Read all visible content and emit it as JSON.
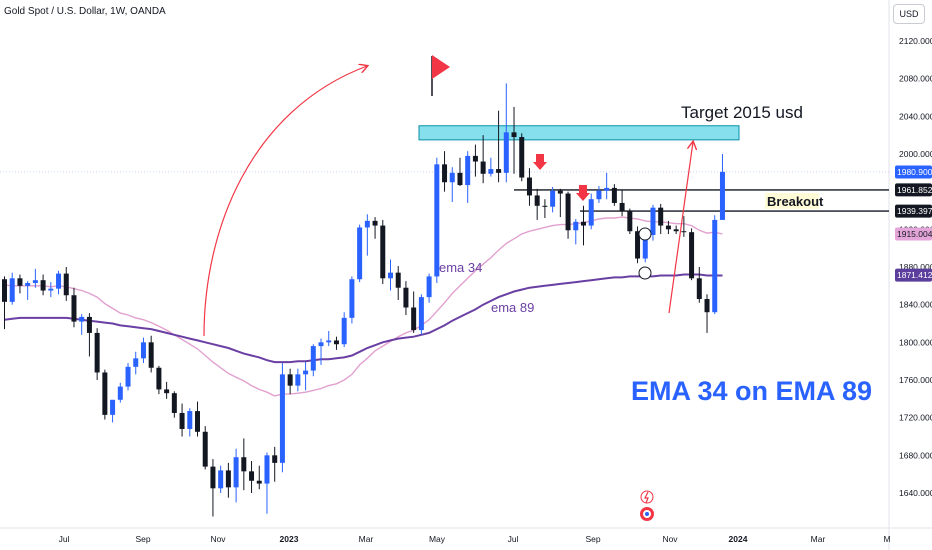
{
  "header": {
    "title": "Gold Spot / U.S. Dollar, 1W, OANDA",
    "currency": "USD"
  },
  "chart_data": {
    "type": "candlestick",
    "y_axis": {
      "ticks": [
        "2120.000",
        "2080.000",
        "2040.000",
        "2000.000",
        "1960.000",
        "1920.000",
        "1880.000",
        "1840.000",
        "1800.000",
        "1760.000",
        "1720.000",
        "1680.000",
        "1640.000"
      ],
      "range": [
        1612,
        2152
      ]
    },
    "x_axis": {
      "ticks": [
        "Jul",
        "Sep",
        "Nov",
        "2023",
        "Mar",
        "May",
        "Jul",
        "Sep",
        "Nov",
        "2024",
        "Mar",
        "M"
      ]
    },
    "price_labels": [
      {
        "value": "1980.900",
        "color": "#2962ff"
      },
      {
        "value": "1961.852",
        "color": "#131722"
      },
      {
        "value": "1939.397",
        "color": "#131722"
      },
      {
        "value": "1915.004",
        "color": "#e4a6d9"
      },
      {
        "value": "1871.412",
        "color": "#5b3d9c"
      }
    ],
    "horizontal_lines": [
      1961.852,
      1939.397
    ],
    "target_zone": [
      2015,
      2030
    ],
    "annotations": {
      "target": "Target 2015 usd",
      "breakout": "Breakout",
      "ema34": "ema 34",
      "ema89": "ema 89",
      "headline": "EMA 34 on EMA 89"
    },
    "series": [
      {
        "name": "ema 34",
        "color": "#e2a0cf"
      },
      {
        "name": "ema 89",
        "color": "#6a3fa3"
      }
    ],
    "colors": {
      "up": "#2962ff",
      "down": "#131722",
      "arrow": "#f23645",
      "zone": "#5cd4e6",
      "headline": "#2962ff"
    },
    "candles": [
      [
        1867,
        1870,
        1814,
        1843
      ],
      [
        1843,
        1874,
        1840,
        1868
      ],
      [
        1868,
        1872,
        1852,
        1860
      ],
      [
        1860,
        1865,
        1845,
        1863
      ],
      [
        1863,
        1878,
        1858,
        1866
      ],
      [
        1866,
        1872,
        1850,
        1855
      ],
      [
        1855,
        1864,
        1848,
        1857
      ],
      [
        1857,
        1876,
        1851,
        1873
      ],
      [
        1873,
        1880,
        1844,
        1850
      ],
      [
        1850,
        1858,
        1816,
        1822
      ],
      [
        1822,
        1830,
        1808,
        1827
      ],
      [
        1827,
        1831,
        1785,
        1810
      ],
      [
        1810,
        1815,
        1760,
        1768
      ],
      [
        1768,
        1771,
        1718,
        1723
      ],
      [
        1723,
        1735,
        1715,
        1739
      ],
      [
        1739,
        1757,
        1736,
        1753
      ],
      [
        1753,
        1778,
        1749,
        1774
      ],
      [
        1774,
        1790,
        1766,
        1783
      ],
      [
        1783,
        1805,
        1778,
        1800
      ],
      [
        1800,
        1807,
        1768,
        1773
      ],
      [
        1773,
        1775,
        1745,
        1750
      ],
      [
        1750,
        1758,
        1740,
        1746
      ],
      [
        1746,
        1748,
        1720,
        1725
      ],
      [
        1725,
        1735,
        1700,
        1708
      ],
      [
        1708,
        1730,
        1700,
        1727
      ],
      [
        1727,
        1737,
        1700,
        1705
      ],
      [
        1705,
        1711,
        1665,
        1668
      ],
      [
        1668,
        1676,
        1615,
        1645
      ],
      [
        1645,
        1669,
        1640,
        1664
      ],
      [
        1664,
        1672,
        1635,
        1646
      ],
      [
        1646,
        1687,
        1630,
        1678
      ],
      [
        1678,
        1698,
        1643,
        1663
      ],
      [
        1663,
        1674,
        1640,
        1653
      ],
      [
        1653,
        1669,
        1644,
        1650
      ],
      [
        1650,
        1683,
        1618,
        1680
      ],
      [
        1680,
        1689,
        1652,
        1672
      ],
      [
        1672,
        1778,
        1662,
        1766
      ],
      [
        1766,
        1772,
        1745,
        1754
      ],
      [
        1754,
        1772,
        1748,
        1766
      ],
      [
        1766,
        1779,
        1749,
        1770
      ],
      [
        1770,
        1798,
        1764,
        1796
      ],
      [
        1796,
        1804,
        1776,
        1800
      ],
      [
        1800,
        1812,
        1796,
        1802
      ],
      [
        1802,
        1806,
        1792,
        1798
      ],
      [
        1798,
        1832,
        1795,
        1826
      ],
      [
        1826,
        1870,
        1820,
        1867
      ],
      [
        1867,
        1925,
        1864,
        1922
      ],
      [
        1922,
        1936,
        1892,
        1929
      ],
      [
        1929,
        1933,
        1910,
        1924
      ],
      [
        1924,
        1930,
        1862,
        1868
      ],
      [
        1868,
        1888,
        1855,
        1874
      ],
      [
        1874,
        1881,
        1845,
        1858
      ],
      [
        1858,
        1865,
        1829,
        1837
      ],
      [
        1837,
        1854,
        1810,
        1813
      ],
      [
        1813,
        1851,
        1808,
        1848
      ],
      [
        1848,
        1873,
        1842,
        1870
      ],
      [
        1870,
        1996,
        1863,
        1989
      ],
      [
        1989,
        2003,
        1960,
        1970
      ],
      [
        1970,
        1986,
        1949,
        1980
      ],
      [
        1980,
        1996,
        1966,
        1967
      ],
      [
        1967,
        2003,
        1948,
        1998
      ],
      [
        1998,
        2010,
        1976,
        1992
      ],
      [
        1992,
        2020,
        1969,
        1979
      ],
      [
        1979,
        1996,
        1976,
        1984
      ],
      [
        1984,
        2046,
        1970,
        1980
      ],
      [
        1980,
        2075,
        1970,
        2023
      ],
      [
        2023,
        2050,
        1979,
        2018
      ],
      [
        2018,
        2022,
        1971,
        1975
      ],
      [
        1975,
        1985,
        1945,
        1956
      ],
      [
        1956,
        1963,
        1930,
        1945
      ],
      [
        1945,
        1952,
        1932,
        1944
      ],
      [
        1944,
        1965,
        1938,
        1961
      ],
      [
        1961,
        1963,
        1933,
        1958
      ],
      [
        1958,
        1960,
        1910,
        1919
      ],
      [
        1919,
        1931,
        1904,
        1928
      ],
      [
        1928,
        1945,
        1903,
        1924
      ],
      [
        1924,
        1958,
        1920,
        1952
      ],
      [
        1952,
        1966,
        1948,
        1961
      ],
      [
        1961,
        1980,
        1952,
        1964
      ],
      [
        1964,
        1968,
        1945,
        1948
      ],
      [
        1948,
        1962,
        1934,
        1939
      ],
      [
        1939,
        1942,
        1915,
        1918
      ],
      [
        1918,
        1923,
        1884,
        1889
      ],
      [
        1889,
        1918,
        1885,
        1914
      ],
      [
        1914,
        1946,
        1908,
        1943
      ],
      [
        1943,
        1947,
        1915,
        1924
      ],
      [
        1924,
        1929,
        1915,
        1920
      ],
      [
        1920,
        1924,
        1915,
        1918
      ],
      [
        1918,
        1934,
        1912,
        1917
      ],
      [
        1917,
        1921,
        1866,
        1868
      ],
      [
        1868,
        1880,
        1842,
        1846
      ],
      [
        1846,
        1851,
        1810,
        1832
      ],
      [
        1832,
        1935,
        1830,
        1930
      ],
      [
        1930,
        2000,
        1930,
        1981
      ]
    ],
    "ema34": [
      1861,
      1860,
      1860,
      1860,
      1860,
      1860,
      1859,
      1860,
      1859,
      1857,
      1855,
      1852,
      1848,
      1841,
      1836,
      1831,
      1829,
      1826,
      1824,
      1821,
      1817,
      1813,
      1808,
      1803,
      1798,
      1793,
      1786,
      1779,
      1773,
      1767,
      1763,
      1759,
      1754,
      1750,
      1747,
      1743,
      1745,
      1745,
      1746,
      1747,
      1749,
      1751,
      1754,
      1756,
      1760,
      1766,
      1776,
      1783,
      1791,
      1796,
      1801,
      1806,
      1810,
      1813,
      1818,
      1824,
      1833,
      1842,
      1852,
      1860,
      1868,
      1876,
      1883,
      1890,
      1898,
      1905,
      1910,
      1915,
      1918,
      1920,
      1922,
      1924,
      1925,
      1925,
      1926,
      1927,
      1929,
      1931,
      1932,
      1932,
      1933,
      1932,
      1931,
      1929,
      1928,
      1928,
      1927,
      1926,
      1926,
      1924,
      1919,
      1916,
      1917,
      1915
    ],
    "ema89": [
      1824,
      1825,
      1826,
      1826,
      1826,
      1826,
      1826,
      1826,
      1826,
      1825,
      1824,
      1823,
      1822,
      1821,
      1820,
      1818,
      1817,
      1816,
      1815,
      1814,
      1812,
      1810,
      1808,
      1806,
      1804,
      1802,
      1800,
      1798,
      1796,
      1794,
      1791,
      1788,
      1786,
      1784,
      1781,
      1779,
      1779,
      1779,
      1780,
      1780,
      1781,
      1782,
      1782,
      1783,
      1784,
      1786,
      1790,
      1794,
      1797,
      1800,
      1802,
      1804,
      1805,
      1806,
      1808,
      1810,
      1814,
      1818,
      1823,
      1827,
      1831,
      1835,
      1840,
      1844,
      1848,
      1851,
      1854,
      1856,
      1858,
      1859,
      1860,
      1861,
      1862,
      1863,
      1864,
      1865,
      1866,
      1867,
      1868,
      1869,
      1869,
      1870,
      1870,
      1870,
      1870,
      1871,
      1871,
      1871,
      1872,
      1872,
      1872,
      1871,
      1871,
      1871
    ]
  }
}
